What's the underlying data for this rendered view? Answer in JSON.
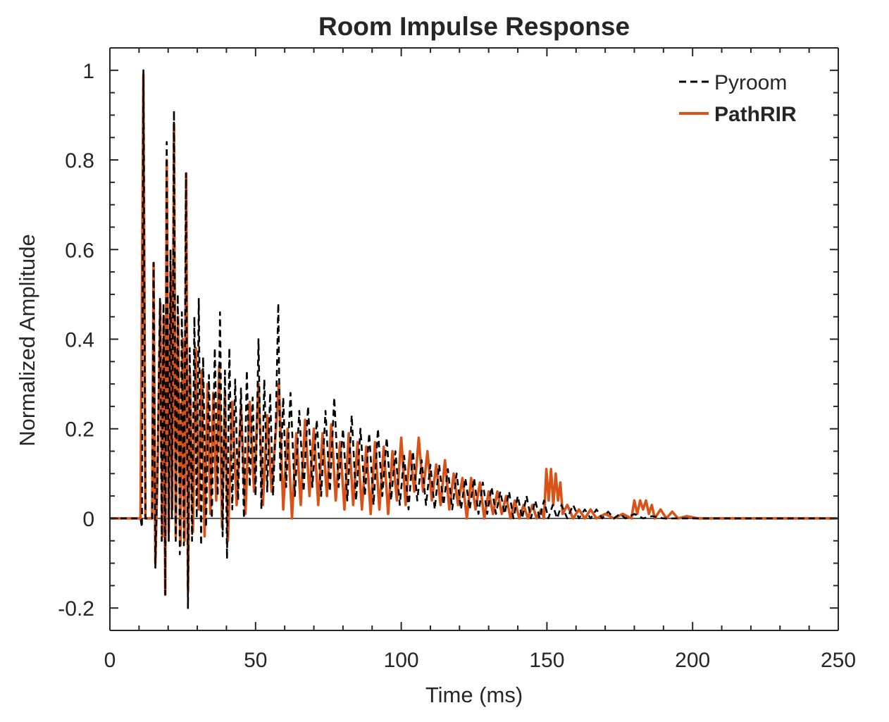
{
  "chart_data": {
    "type": "line",
    "title": "Room Impulse Response",
    "xlabel": "Time (ms)",
    "ylabel": "Normalized Amplitude",
    "xlim": [
      0,
      250
    ],
    "ylim": [
      -0.25,
      1.05
    ],
    "xticks": [
      0,
      50,
      100,
      150,
      200,
      250
    ],
    "xtick_labels": [
      "0",
      "50",
      "100",
      "150",
      "200",
      "250"
    ],
    "yticks": [
      -0.2,
      0,
      0.2,
      0.4,
      0.6,
      0.8,
      1
    ],
    "ytick_labels": [
      "-0.2",
      "0",
      "0.2",
      "0.4",
      "0.6",
      "0.8",
      "1"
    ],
    "grid": false,
    "legend_position": "top-right",
    "series": [
      {
        "name": "Pyroom",
        "style": "dashed",
        "color": "#000000",
        "points": [
          [
            0,
            0
          ],
          [
            10.5,
            0
          ],
          [
            11.0,
            -0.02
          ],
          [
            11.5,
            1.0
          ],
          [
            12.2,
            0.0
          ],
          [
            14.5,
            0.0
          ],
          [
            15.0,
            0.57
          ],
          [
            15.6,
            -0.11
          ],
          [
            16.3,
            0.1
          ],
          [
            17.2,
            0.49
          ],
          [
            17.8,
            -0.05
          ],
          [
            18.4,
            0.48
          ],
          [
            19.0,
            -0.17
          ],
          [
            19.5,
            0.84
          ],
          [
            20.2,
            -0.05
          ],
          [
            20.8,
            0.6
          ],
          [
            21.3,
            0.0
          ],
          [
            22.0,
            0.91
          ],
          [
            22.6,
            -0.05
          ],
          [
            23.3,
            0.5
          ],
          [
            24.0,
            -0.08
          ],
          [
            24.7,
            0.46
          ],
          [
            25.4,
            -0.06
          ],
          [
            26.1,
            0.77
          ],
          [
            26.8,
            -0.2
          ],
          [
            27.4,
            0.38
          ],
          [
            28.2,
            -0.05
          ],
          [
            29.0,
            0.45
          ],
          [
            29.8,
            0.0
          ],
          [
            30.5,
            0.49
          ],
          [
            31.3,
            -0.06
          ],
          [
            32.0,
            0.36
          ],
          [
            33.0,
            -0.02
          ],
          [
            34.0,
            0.32
          ],
          [
            35.0,
            0.0
          ],
          [
            36.0,
            0.38
          ],
          [
            37.0,
            0.05
          ],
          [
            37.8,
            0.46
          ],
          [
            38.7,
            -0.04
          ],
          [
            39.5,
            0.33
          ],
          [
            40.2,
            -0.09
          ],
          [
            41.0,
            0.38
          ],
          [
            42.0,
            0.02
          ],
          [
            43.0,
            0.31
          ],
          [
            44.0,
            0.04
          ],
          [
            45.0,
            0.29
          ],
          [
            46.0,
            0.0
          ],
          [
            47.0,
            0.33
          ],
          [
            48.0,
            0.07
          ],
          [
            49.0,
            0.27
          ],
          [
            50.0,
            0.05
          ],
          [
            51.0,
            0.4
          ],
          [
            52.0,
            0.02
          ],
          [
            53.0,
            0.31
          ],
          [
            54.0,
            0.06
          ],
          [
            55.0,
            0.28
          ],
          [
            56.0,
            0.05
          ],
          [
            57.0,
            0.23
          ],
          [
            57.8,
            0.48
          ],
          [
            58.5,
            0.08
          ],
          [
            59.5,
            0.27
          ],
          [
            60.5,
            0.07
          ],
          [
            62.0,
            0.28
          ],
          [
            63.5,
            0.05
          ],
          [
            65.0,
            0.24
          ],
          [
            66.5,
            0.06
          ],
          [
            68.0,
            0.25
          ],
          [
            69.5,
            0.07
          ],
          [
            71.0,
            0.22
          ],
          [
            72.5,
            0.05
          ],
          [
            74.0,
            0.24
          ],
          [
            75.5,
            0.06
          ],
          [
            77.0,
            0.27
          ],
          [
            78.5,
            0.07
          ],
          [
            80.0,
            0.2
          ],
          [
            81.5,
            0.04
          ],
          [
            83.0,
            0.23
          ],
          [
            84.5,
            0.04
          ],
          [
            86.0,
            0.2
          ],
          [
            87.5,
            0.05
          ],
          [
            89.0,
            0.19
          ],
          [
            90.5,
            0.03
          ],
          [
            92.0,
            0.2
          ],
          [
            93.5,
            0.05
          ],
          [
            95.0,
            0.18
          ],
          [
            96.5,
            0.04
          ],
          [
            98.0,
            0.15
          ],
          [
            99.5,
            0.03
          ],
          [
            101.0,
            0.14
          ],
          [
            102.5,
            0.02
          ],
          [
            104.0,
            0.15
          ],
          [
            105.5,
            0.04
          ],
          [
            107.0,
            0.13
          ],
          [
            108.5,
            0.03
          ],
          [
            110.0,
            0.12
          ],
          [
            111.5,
            0.02
          ],
          [
            113.0,
            0.12
          ],
          [
            114.5,
            0.03
          ],
          [
            116.0,
            0.11
          ],
          [
            117.5,
            0.02
          ],
          [
            119.0,
            0.1
          ],
          [
            120.5,
            0.02
          ],
          [
            122.0,
            0.09
          ],
          [
            123.5,
            0.02
          ],
          [
            125.0,
            0.09
          ],
          [
            126.5,
            0.01
          ],
          [
            128.0,
            0.08
          ],
          [
            129.5,
            0.01
          ],
          [
            131.0,
            0.07
          ],
          [
            132.5,
            0.01
          ],
          [
            134.0,
            0.06
          ],
          [
            135.5,
            0.01
          ],
          [
            137.0,
            0.06
          ],
          [
            138.5,
            0.0
          ],
          [
            140.0,
            0.05
          ],
          [
            141.5,
            0.0
          ],
          [
            143.0,
            0.05
          ],
          [
            144.5,
            0.0
          ],
          [
            146.0,
            0.04
          ],
          [
            147.5,
            0.0
          ],
          [
            149.0,
            0.04
          ],
          [
            150.5,
            0.0
          ],
          [
            152.0,
            0.03
          ],
          [
            153.5,
            0.0
          ],
          [
            155.0,
            0.03
          ],
          [
            157.0,
            0.0
          ],
          [
            159.0,
            0.03
          ],
          [
            161.0,
            0.0
          ],
          [
            163.0,
            0.02
          ],
          [
            165.0,
            0.0
          ],
          [
            167.0,
            0.02
          ],
          [
            169.0,
            0.0
          ],
          [
            171.0,
            0.015
          ],
          [
            173.0,
            0.0
          ],
          [
            175.0,
            0.01
          ],
          [
            177.0,
            0.0
          ],
          [
            180.0,
            0.01
          ],
          [
            183.0,
            0.0
          ],
          [
            186.0,
            0.005
          ],
          [
            190.0,
            0.0
          ],
          [
            250,
            0.0
          ]
        ]
      },
      {
        "name": "PathRIR",
        "style": "solid",
        "color": "#D95319",
        "points": [
          [
            0,
            0
          ],
          [
            10.5,
            0
          ],
          [
            11.5,
            0.99
          ],
          [
            12.2,
            0.0
          ],
          [
            14.5,
            0.0
          ],
          [
            15.0,
            0.57
          ],
          [
            15.6,
            -0.1
          ],
          [
            16.5,
            0.15
          ],
          [
            17.3,
            0.48
          ],
          [
            18.0,
            -0.04
          ],
          [
            18.5,
            0.45
          ],
          [
            19.0,
            -0.17
          ],
          [
            19.5,
            0.8
          ],
          [
            20.2,
            -0.03
          ],
          [
            20.9,
            0.55
          ],
          [
            21.4,
            0.02
          ],
          [
            22.0,
            0.88
          ],
          [
            22.6,
            -0.04
          ],
          [
            23.4,
            0.45
          ],
          [
            24.2,
            -0.06
          ],
          [
            25.0,
            0.4
          ],
          [
            25.6,
            -0.05
          ],
          [
            26.2,
            0.77
          ],
          [
            26.8,
            -0.16
          ],
          [
            27.5,
            0.32
          ],
          [
            28.5,
            -0.03
          ],
          [
            29.5,
            0.38
          ],
          [
            30.5,
            0.02
          ],
          [
            31.5,
            0.33
          ],
          [
            32.5,
            -0.04
          ],
          [
            33.5,
            0.3
          ],
          [
            34.5,
            0.01
          ],
          [
            35.5,
            0.28
          ],
          [
            36.5,
            0.04
          ],
          [
            37.5,
            0.34
          ],
          [
            38.5,
            -0.02
          ],
          [
            39.5,
            0.28
          ],
          [
            40.5,
            -0.05
          ],
          [
            42.0,
            0.26
          ],
          [
            43.5,
            0.03
          ],
          [
            45.0,
            0.25
          ],
          [
            46.5,
            0.01
          ],
          [
            48.0,
            0.26
          ],
          [
            49.5,
            0.06
          ],
          [
            51.0,
            0.3
          ],
          [
            52.5,
            0.03
          ],
          [
            54.0,
            0.23
          ],
          [
            55.5,
            0.06
          ],
          [
            57.0,
            0.2
          ],
          [
            58.0,
            0.3
          ],
          [
            59.5,
            0.02
          ],
          [
            61.0,
            0.2
          ],
          [
            62.5,
            0.0
          ],
          [
            64.0,
            0.19
          ],
          [
            65.5,
            0.03
          ],
          [
            67.0,
            0.22
          ],
          [
            68.5,
            0.05
          ],
          [
            70.0,
            0.2
          ],
          [
            71.5,
            0.03
          ],
          [
            73.0,
            0.19
          ],
          [
            74.5,
            0.05
          ],
          [
            76.0,
            0.21
          ],
          [
            77.5,
            0.04
          ],
          [
            79.0,
            0.17
          ],
          [
            80.5,
            0.02
          ],
          [
            82.0,
            0.19
          ],
          [
            83.5,
            0.03
          ],
          [
            85.0,
            0.17
          ],
          [
            86.5,
            0.02
          ],
          [
            88.0,
            0.16
          ],
          [
            89.5,
            0.01
          ],
          [
            91.0,
            0.17
          ],
          [
            92.5,
            0.02
          ],
          [
            94.0,
            0.16
          ],
          [
            95.5,
            0.01
          ],
          [
            97.0,
            0.15
          ],
          [
            98.5,
            0.04
          ],
          [
            100.0,
            0.18
          ],
          [
            101.5,
            0.03
          ],
          [
            103.0,
            0.15
          ],
          [
            104.5,
            0.06
          ],
          [
            106.0,
            0.18
          ],
          [
            107.5,
            0.06
          ],
          [
            109.0,
            0.15
          ],
          [
            110.5,
            0.04
          ],
          [
            112.0,
            0.12
          ],
          [
            113.5,
            0.03
          ],
          [
            115.0,
            0.13
          ],
          [
            116.5,
            0.02
          ],
          [
            118.0,
            0.1
          ],
          [
            119.5,
            0.03
          ],
          [
            121.0,
            0.09
          ],
          [
            122.5,
            0.0
          ],
          [
            124.0,
            0.09
          ],
          [
            125.5,
            0.02
          ],
          [
            127.0,
            0.08
          ],
          [
            128.5,
            0.0
          ],
          [
            130.0,
            0.06
          ],
          [
            131.5,
            0.01
          ],
          [
            133.0,
            0.06
          ],
          [
            134.5,
            0.01
          ],
          [
            136.0,
            0.05
          ],
          [
            137.5,
            0.0
          ],
          [
            139.0,
            0.04
          ],
          [
            140.5,
            0.0
          ],
          [
            142.0,
            0.03
          ],
          [
            143.5,
            0.0
          ],
          [
            145.0,
            0.03
          ],
          [
            146.5,
            0.0
          ],
          [
            148.0,
            0.02
          ],
          [
            149.0,
            0.0
          ],
          [
            149.8,
            0.11
          ],
          [
            150.6,
            0.04
          ],
          [
            151.4,
            0.11
          ],
          [
            152.2,
            0.03
          ],
          [
            153.0,
            0.1
          ],
          [
            153.8,
            0.04
          ],
          [
            154.6,
            0.08
          ],
          [
            155.4,
            0.01
          ],
          [
            157.0,
            0.03
          ],
          [
            159.0,
            0.0
          ],
          [
            161.0,
            0.02
          ],
          [
            163.0,
            0.0
          ],
          [
            165.0,
            0.02
          ],
          [
            167.0,
            0.0
          ],
          [
            170.0,
            0.01
          ],
          [
            173.0,
            0.0
          ],
          [
            176.0,
            0.01
          ],
          [
            179.0,
            0.0
          ],
          [
            180.0,
            0.04
          ],
          [
            181.0,
            0.01
          ],
          [
            182.0,
            0.04
          ],
          [
            183.0,
            0.02
          ],
          [
            184.0,
            0.04
          ],
          [
            185.0,
            0.01
          ],
          [
            186.0,
            0.03
          ],
          [
            187.0,
            0.0
          ],
          [
            189.0,
            0.02
          ],
          [
            191.0,
            0.0
          ],
          [
            193.0,
            0.015
          ],
          [
            195.0,
            0.0
          ],
          [
            198.0,
            0.005
          ],
          [
            202.0,
            0.0
          ],
          [
            250,
            0.0
          ]
        ]
      }
    ]
  }
}
